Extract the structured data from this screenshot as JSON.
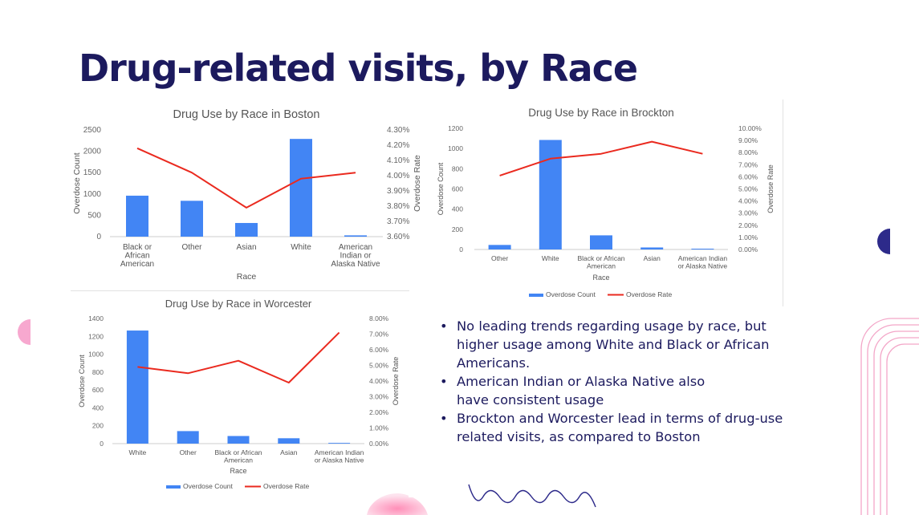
{
  "slide": {
    "title": "Drug-related visits, by Race",
    "bullets": [
      "No leading trends regarding usage by race, but higher usage among White and Black or African Americans.",
      "American Indian or Alaska Native also have consistent usage",
      "Brockton and Worcester lead in terms of drug-use related visits, as compared to Boston"
    ],
    "colors": {
      "title": "#1c1a5e",
      "bar": "#4285f4",
      "line": "#ea2a1f",
      "accent_purple": "#2d2a8a",
      "accent_pink": "#f7a8cf"
    }
  },
  "chart_data": [
    {
      "type": "bar",
      "title": "Drug Use by Race in Boston",
      "categories": [
        "Black or African American",
        "Other",
        "Asian",
        "White",
        "American Indian or Alaska Native"
      ],
      "category_lines": [
        [
          "Black or",
          "African",
          "American"
        ],
        [
          "Other"
        ],
        [
          "Asian"
        ],
        [
          "White"
        ],
        [
          "American",
          "Indian or",
          "Alaska Native"
        ]
      ],
      "xlabel": "Race",
      "ylabel": "Overdose Count",
      "y2label": "Overdose Rate",
      "ylim": [
        0,
        2500
      ],
      "yticks": [
        0,
        500,
        1000,
        1500,
        2000,
        2500
      ],
      "y2lim": [
        3.6,
        4.3
      ],
      "y2ticks": [
        "3.60%",
        "3.70%",
        "3.80%",
        "3.90%",
        "4.00%",
        "4.10%",
        "4.20%",
        "4.30%"
      ],
      "series": [
        {
          "name": "Overdose Count",
          "kind": "bar",
          "values": [
            960,
            840,
            320,
            2290,
            30
          ]
        },
        {
          "name": "Overdose Rate",
          "kind": "line",
          "axis": "right",
          "values": [
            4.18,
            4.02,
            3.79,
            3.98,
            4.02
          ]
        }
      ],
      "legend": null
    },
    {
      "type": "bar",
      "title": "Drug Use by Race in Brockton",
      "categories": [
        "Other",
        "White",
        "Black or African American",
        "Asian",
        "American Indian or Alaska Native"
      ],
      "category_lines": [
        [
          "Other"
        ],
        [
          "White"
        ],
        [
          "Black or African",
          "American"
        ],
        [
          "Asian"
        ],
        [
          "American Indian",
          "or Alaska Native"
        ]
      ],
      "xlabel": "Race",
      "ylabel": "Overdose Count",
      "y2label": "Overdose Rate",
      "ylim": [
        0,
        1200
      ],
      "yticks": [
        0,
        200,
        400,
        600,
        800,
        1000,
        1200
      ],
      "y2lim": [
        0,
        10
      ],
      "y2ticks": [
        "0.00%",
        "1.00%",
        "2.00%",
        "3.00%",
        "4.00%",
        "5.00%",
        "6.00%",
        "7.00%",
        "8.00%",
        "9.00%",
        "10.00%"
      ],
      "series": [
        {
          "name": "Overdose Count",
          "kind": "bar",
          "values": [
            45,
            1085,
            140,
            20,
            8
          ]
        },
        {
          "name": "Overdose Rate",
          "kind": "line",
          "axis": "right",
          "values": [
            6.1,
            7.5,
            7.9,
            8.9,
            7.9
          ]
        }
      ],
      "legend": "bottom"
    },
    {
      "type": "bar",
      "title": "Drug Use by Race in Worcester",
      "categories": [
        "White",
        "Other",
        "Black or African American",
        "Asian",
        "American Indian or Alaska Native"
      ],
      "category_lines": [
        [
          "White"
        ],
        [
          "Other"
        ],
        [
          "Black or African",
          "American"
        ],
        [
          "Asian"
        ],
        [
          "American Indian",
          "or Alaska Native"
        ]
      ],
      "xlabel": "Race",
      "ylabel": "Overdose Count",
      "y2label": "Overdose Rate",
      "ylim": [
        0,
        1400
      ],
      "yticks": [
        0,
        200,
        400,
        600,
        800,
        1000,
        1200,
        1400
      ],
      "y2lim": [
        0,
        8
      ],
      "y2ticks": [
        "0.00%",
        "1.00%",
        "2.00%",
        "3.00%",
        "4.00%",
        "5.00%",
        "6.00%",
        "7.00%",
        "8.00%"
      ],
      "series": [
        {
          "name": "Overdose Count",
          "kind": "bar",
          "values": [
            1265,
            140,
            85,
            60,
            8
          ]
        },
        {
          "name": "Overdose Rate",
          "kind": "line",
          "axis": "right",
          "values": [
            4.9,
            4.5,
            5.3,
            3.9,
            7.1
          ]
        }
      ],
      "legend": "bottom"
    }
  ]
}
